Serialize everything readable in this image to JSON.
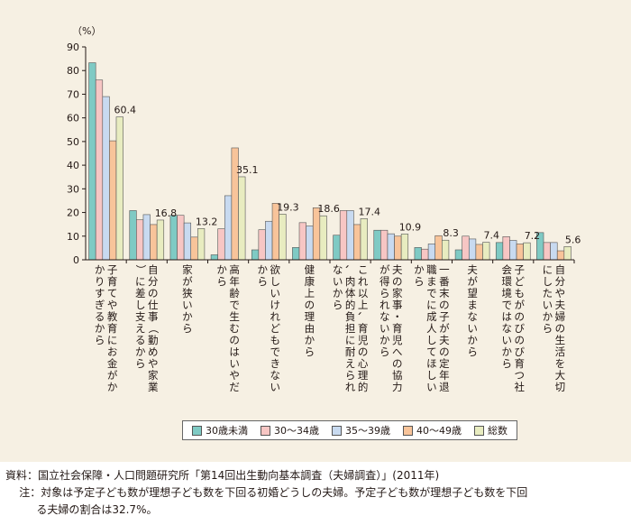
{
  "chart_data": {
    "type": "bar",
    "y_unit": "（%）",
    "ylim": [
      0,
      90
    ],
    "y_ticks": [
      0,
      10,
      20,
      30,
      40,
      50,
      60,
      70,
      80,
      90
    ],
    "categories": [
      "子育てや教育にお金がかかりすぎるから",
      "自分の仕事（勤めや家業）に差し支えるから",
      "家が狭いから",
      "高年齢で生むのはいやだから",
      "欲しいけれどもできないから",
      "健康上の理由から",
      "これ以上、育児の心理的、肉体的負担に耐えられないから",
      "夫の家事・育児への協力が得られないから",
      "一番末の子が夫の定年退職までに成人してほしいから",
      "夫が望まないから",
      "子どもがのびのび育つ社会環境ではないから",
      "自分や夫婦の生活を大切にしたいから"
    ],
    "series": [
      {
        "name": "30歳未満",
        "color": "#7fcac4",
        "values": [
          83.3,
          20.8,
          18.8,
          2.1,
          4.2,
          5.2,
          10.4,
          12.5,
          5.2,
          4.2,
          7.3,
          11.5
        ]
      },
      {
        "name": "30～34歳",
        "color": "#f7c6c4",
        "values": [
          76.0,
          16.9,
          18.8,
          13.1,
          12.7,
          15.7,
          20.8,
          12.5,
          4.5,
          10.0,
          9.8,
          7.3
        ]
      },
      {
        "name": "35～39歳",
        "color": "#c8daf0",
        "values": [
          69.0,
          19.1,
          15.6,
          27.1,
          16.3,
          14.3,
          20.8,
          11.0,
          6.7,
          8.8,
          8.2,
          7.3
        ]
      },
      {
        "name": "40～49歳",
        "color": "#f8c49a",
        "values": [
          50.3,
          14.9,
          9.6,
          47.3,
          23.9,
          22.0,
          14.9,
          10.0,
          10.2,
          6.5,
          6.7,
          3.8
        ]
      },
      {
        "name": "総数",
        "color": "#e8ecc0",
        "values": [
          60.4,
          16.8,
          13.2,
          35.1,
          19.3,
          18.6,
          17.4,
          10.9,
          8.3,
          7.4,
          7.2,
          5.6
        ]
      }
    ],
    "data_labels": [
      "60.4",
      "16.8",
      "13.2",
      "35.1",
      "19.3",
      "18.6",
      "17.4",
      "10.9",
      "8.3",
      "7.4",
      "7.2",
      "5.6"
    ],
    "legend_position": "bottom-center",
    "grid": false
  },
  "notes": {
    "source_label": "資料：",
    "source_text": "国立社会保障・人口問題研究所「第14回出生動向基本調査（夫婦調査）」(2011年)",
    "note_label": "注：",
    "note_text": "対象は予定子ども数が理想子ども数を下回る初婚どうしの夫婦。予定子ども数が理想子ども数を下回",
    "note_cont": "る夫婦の割合は32.7%。"
  }
}
